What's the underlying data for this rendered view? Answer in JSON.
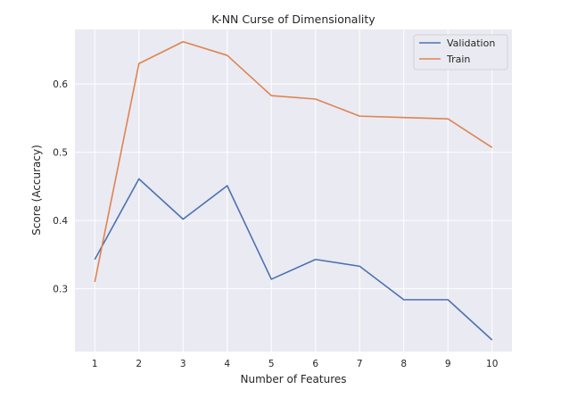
{
  "chart_data": {
    "type": "line",
    "title": "K-NN Curse of Dimensionality",
    "xlabel": "Number of Features",
    "ylabel": "Score (Accuracy)",
    "x": [
      1,
      2,
      3,
      4,
      5,
      6,
      7,
      8,
      9,
      10
    ],
    "x_ticks": [
      "1",
      "2",
      "3",
      "4",
      "5",
      "6",
      "7",
      "8",
      "9",
      "10"
    ],
    "y_ticks": [
      "0.3",
      "0.4",
      "0.5",
      "0.6"
    ],
    "y_tick_values": [
      0.3,
      0.4,
      0.5,
      0.6
    ],
    "xlim": [
      0.55,
      10.45
    ],
    "ylim": [
      0.208,
      0.68
    ],
    "grid": true,
    "legend_position": "top-right",
    "series": [
      {
        "name": "Validation",
        "color": "#4c72b0",
        "values": [
          0.343,
          0.461,
          0.402,
          0.451,
          0.314,
          0.343,
          0.333,
          0.284,
          0.284,
          0.225
        ]
      },
      {
        "name": "Train",
        "color": "#dd8452",
        "values": [
          0.31,
          0.63,
          0.662,
          0.642,
          0.583,
          0.578,
          0.553,
          0.551,
          0.549,
          0.507
        ]
      }
    ]
  },
  "colors": {
    "plot_background": "#eaeaf2",
    "grid": "#ffffff"
  }
}
